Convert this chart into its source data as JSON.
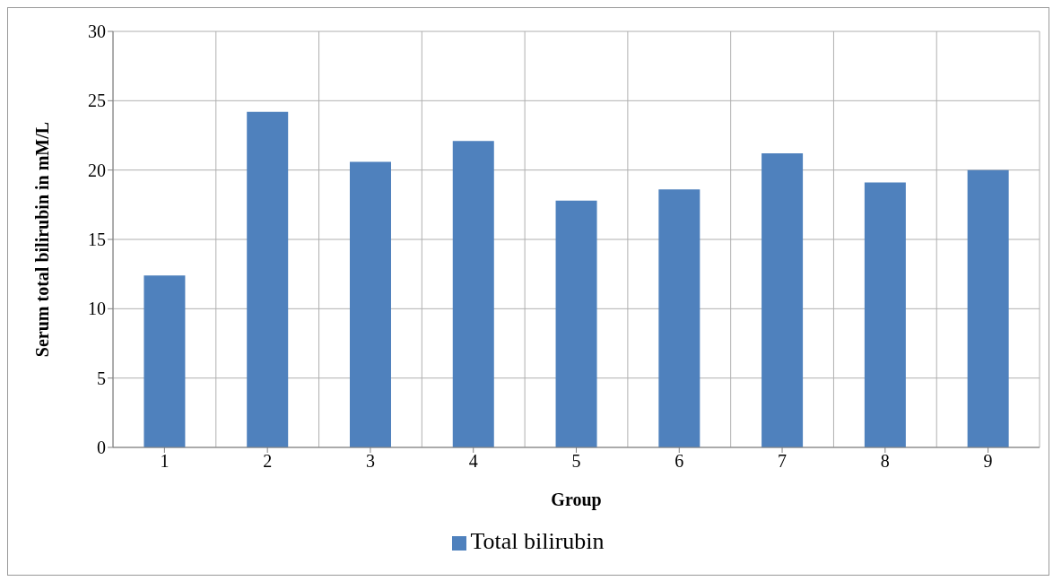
{
  "chart_data": {
    "type": "bar",
    "xlabel": "Group",
    "ylabel": "Serum total bilirubin in mM/L",
    "categories": [
      "1",
      "2",
      "3",
      "4",
      "5",
      "6",
      "7",
      "8",
      "9"
    ],
    "series": [
      {
        "name": "Total bilirubin",
        "color": "#4f81bd",
        "values": [
          12.4,
          24.2,
          20.6,
          22.1,
          17.8,
          18.6,
          21.2,
          19.1,
          20.0
        ]
      }
    ],
    "ylim": [
      0,
      30
    ],
    "yticks": [
      0,
      5,
      10,
      15,
      20,
      25,
      30
    ],
    "grid": true,
    "legend": "bottom"
  }
}
